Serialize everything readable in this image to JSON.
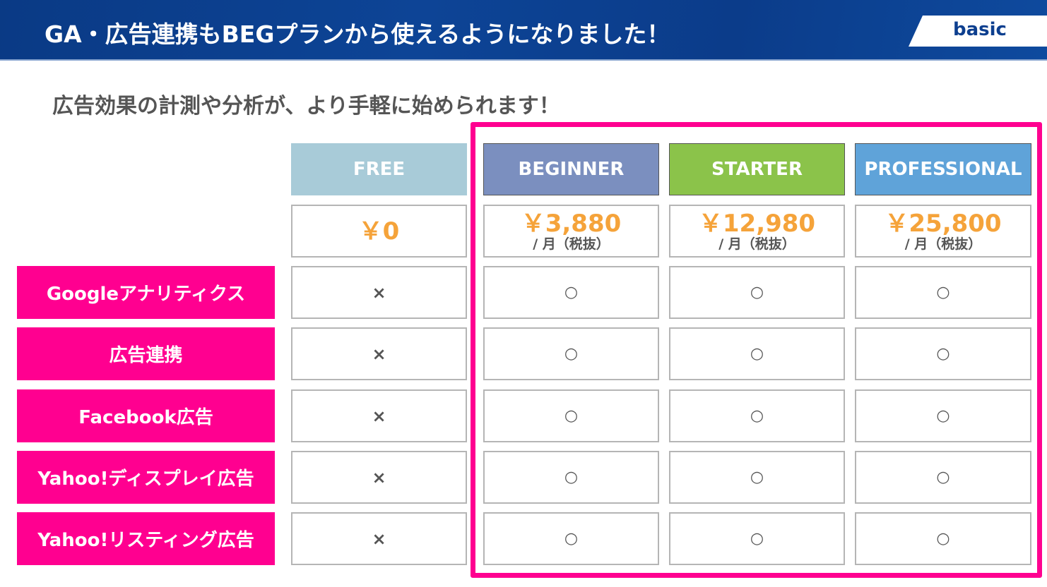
{
  "header": {
    "title": "GA・広告連携もBEGプランから使えるようになりました！",
    "badge": "basic"
  },
  "subtitle": "広告効果の計測や分析が、より手軽に始められます！",
  "colors": {
    "pink": "#ff0090",
    "price": "#f5a33a",
    "free": "#a8cbd8",
    "beginner": "#7b8fbf",
    "starter": "#8bc34a",
    "professional": "#5fa3d9"
  },
  "plans": [
    {
      "name": "FREE",
      "price": "￥0",
      "unit": ""
    },
    {
      "name": "BEGINNER",
      "price": "￥3,880",
      "unit": "/ 月（税抜）"
    },
    {
      "name": "STARTER",
      "price": "￥12,980",
      "unit": "/ 月（税抜）"
    },
    {
      "name": "PROFESSIONAL",
      "price": "￥25,800",
      "unit": "/ 月（税抜）"
    }
  ],
  "features": [
    {
      "label": "Googleアナリティクス",
      "values": [
        "×",
        "○",
        "○",
        "○"
      ]
    },
    {
      "label": "広告連携",
      "values": [
        "×",
        "○",
        "○",
        "○"
      ]
    },
    {
      "label": "Facebook広告",
      "values": [
        "×",
        "○",
        "○",
        "○"
      ]
    },
    {
      "label": "Yahoo!ディスプレイ広告",
      "values": [
        "×",
        "○",
        "○",
        "○"
      ]
    },
    {
      "label": "Yahoo!リスティング広告",
      "values": [
        "×",
        "○",
        "○",
        "○"
      ]
    }
  ]
}
